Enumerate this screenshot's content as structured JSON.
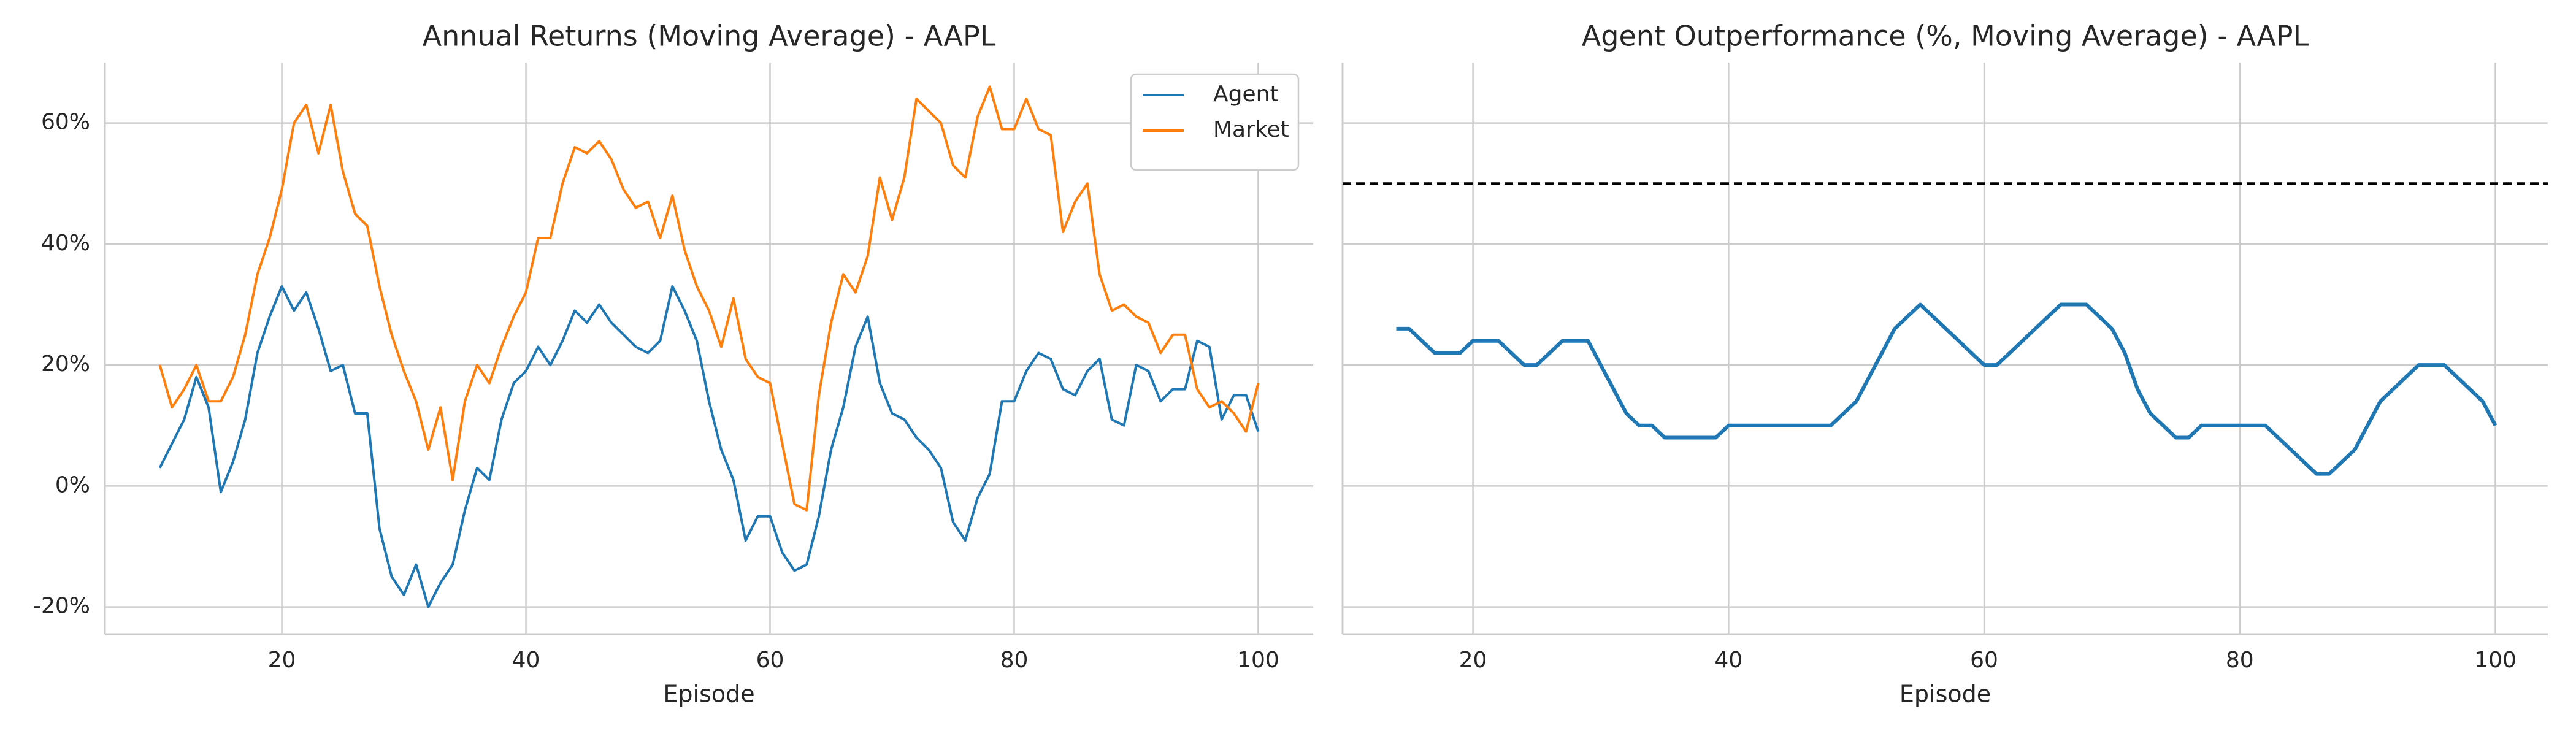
{
  "chart_data": [
    {
      "type": "line",
      "title": "Annual Returns (Moving Average) - AAPL",
      "x_label": "Episode",
      "x": [
        10,
        11,
        12,
        13,
        14,
        15,
        16,
        17,
        18,
        19,
        20,
        21,
        22,
        23,
        24,
        25,
        26,
        27,
        28,
        29,
        30,
        31,
        32,
        33,
        34,
        35,
        36,
        37,
        38,
        39,
        40,
        41,
        42,
        43,
        44,
        45,
        46,
        47,
        48,
        49,
        50,
        51,
        52,
        53,
        54,
        55,
        56,
        57,
        58,
        59,
        60,
        61,
        62,
        63,
        64,
        65,
        66,
        67,
        68,
        69,
        70,
        71,
        72,
        73,
        74,
        75,
        76,
        77,
        78,
        79,
        80,
        81,
        82,
        83,
        84,
        85,
        86,
        87,
        88,
        89,
        90,
        91,
        92,
        93,
        94,
        95,
        96,
        97,
        98,
        99,
        100
      ],
      "series": [
        {
          "name": "Agent",
          "color": "#1f77b4",
          "values": [
            3,
            7,
            11,
            18,
            13,
            -1,
            4,
            11,
            22,
            28,
            33,
            29,
            32,
            26,
            19,
            20,
            12,
            12,
            -7,
            -15,
            -18,
            -13,
            -20,
            -16,
            -13,
            -4,
            3,
            1,
            11,
            17,
            19,
            23,
            20,
            24,
            29,
            27,
            30,
            27,
            25,
            23,
            22,
            24,
            33,
            29,
            24,
            14,
            6,
            1,
            -9,
            -5,
            -5,
            -11,
            -14,
            -13,
            -5,
            6,
            13,
            23,
            28,
            17,
            12,
            11,
            8,
            6,
            3,
            -6,
            -9,
            -2,
            2,
            14,
            14,
            19,
            22,
            21,
            16,
            15,
            19,
            21,
            11,
            10,
            20,
            19,
            14,
            16,
            16,
            24,
            23,
            11,
            15,
            15,
            9
          ]
        },
        {
          "name": "Market",
          "color": "#ff7f0e",
          "values": [
            20,
            13,
            16,
            20,
            14,
            14,
            18,
            25,
            35,
            41,
            49,
            60,
            63,
            55,
            63,
            52,
            45,
            43,
            33,
            25,
            19,
            14,
            6,
            13,
            1,
            14,
            20,
            17,
            23,
            28,
            32,
            41,
            41,
            50,
            56,
            55,
            57,
            54,
            49,
            46,
            47,
            41,
            48,
            39,
            33,
            29,
            23,
            31,
            21,
            18,
            17,
            7,
            -3,
            -4,
            15,
            27,
            35,
            32,
            38,
            51,
            44,
            51,
            64,
            62,
            60,
            53,
            51,
            61,
            66,
            59,
            59,
            64,
            59,
            58,
            42,
            47,
            50,
            35,
            29,
            30,
            28,
            27,
            22,
            25,
            25,
            16,
            13,
            14,
            12,
            9,
            17
          ]
        }
      ],
      "xlim": [
        5.5,
        104.5
      ],
      "xticks": [
        20,
        40,
        60,
        80,
        100
      ],
      "ylim": [
        -24.5,
        70
      ],
      "yticks": [
        {
          "value": -20,
          "label": "-20%"
        },
        {
          "value": 0,
          "label": "0%"
        },
        {
          "value": 20,
          "label": "20%"
        },
        {
          "value": 40,
          "label": "40%"
        },
        {
          "value": 60,
          "label": "60%"
        }
      ],
      "grid": true,
      "legend": "upper right"
    },
    {
      "type": "line",
      "title": "Agent Outperformance (%, Moving Average) - AAPL",
      "x_label": "Episode",
      "x": [
        14,
        15,
        16,
        17,
        18,
        19,
        20,
        21,
        22,
        23,
        24,
        25,
        26,
        27,
        28,
        29,
        30,
        31,
        32,
        33,
        34,
        35,
        36,
        37,
        38,
        39,
        40,
        41,
        42,
        43,
        44,
        45,
        46,
        47,
        48,
        49,
        50,
        51,
        52,
        53,
        54,
        55,
        56,
        57,
        58,
        59,
        60,
        61,
        62,
        63,
        64,
        65,
        66,
        67,
        68,
        69,
        70,
        71,
        72,
        73,
        74,
        75,
        76,
        77,
        78,
        79,
        80,
        81,
        82,
        83,
        84,
        85,
        86,
        87,
        88,
        89,
        90,
        91,
        92,
        93,
        94,
        95,
        96,
        97,
        98,
        99,
        100
      ],
      "series": [
        {
          "color": "#1f77b4",
          "values": [
            26,
            26,
            24,
            22,
            22,
            22,
            24,
            24,
            24,
            22,
            20,
            20,
            22,
            24,
            24,
            24,
            20,
            16,
            12,
            10,
            10,
            8,
            8,
            8,
            8,
            8,
            10,
            10,
            10,
            10,
            10,
            10,
            10,
            10,
            10,
            12,
            14,
            18,
            22,
            26,
            28,
            30,
            28,
            26,
            24,
            22,
            20,
            20,
            22,
            24,
            26,
            28,
            30,
            30,
            30,
            28,
            26,
            22,
            16,
            12,
            10,
            8,
            8,
            10,
            10,
            10,
            10,
            10,
            10,
            8,
            6,
            4,
            2,
            2,
            4,
            6,
            10,
            14,
            16,
            18,
            20,
            20,
            20,
            18,
            16,
            14,
            10
          ]
        }
      ],
      "hline": 50,
      "hline_color": "#000000",
      "xlim": [
        9.8,
        104.1
      ],
      "xticks": [
        20,
        40,
        60,
        80,
        100
      ],
      "ylim": [
        -24.5,
        70
      ],
      "yticks": [
        -20,
        0,
        20,
        40,
        60
      ],
      "grid": true
    }
  ]
}
